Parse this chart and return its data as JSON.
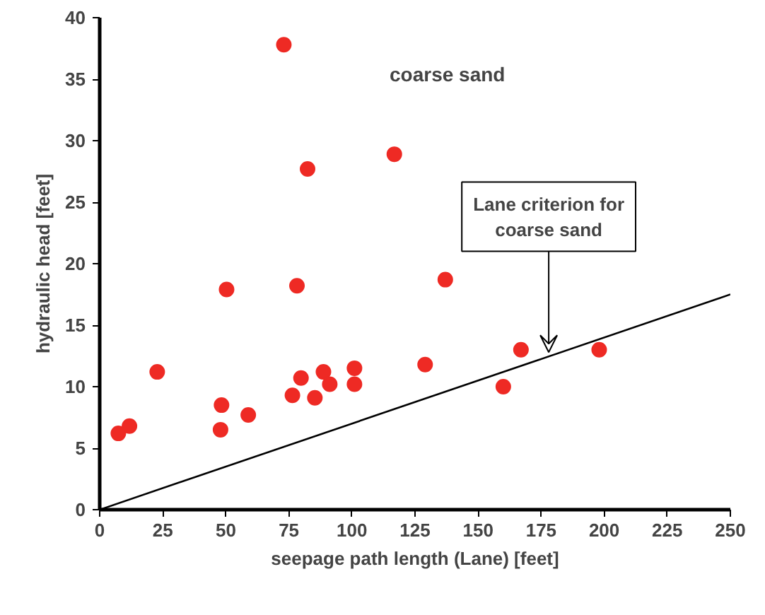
{
  "chart_data": {
    "type": "scatter",
    "xlabel": "seepage path length (Lane) [feet]",
    "ylabel": "hydraulic head [feet]",
    "xlim": [
      0,
      250
    ],
    "ylim": [
      0,
      40
    ],
    "xticks": [
      0,
      25,
      50,
      75,
      100,
      125,
      150,
      175,
      200,
      225,
      250
    ],
    "yticks": [
      0,
      5,
      10,
      15,
      20,
      25,
      30,
      35,
      40
    ],
    "grid": false,
    "marker": "circle",
    "series": [
      {
        "color": "#ee2a24",
        "x": [
          7.4,
          11.8,
          22.8,
          50.3,
          48.3,
          47.9,
          58.9,
          78.2,
          76.4,
          79.8,
          85.3,
          88.7,
          91.2,
          101,
          101,
          137,
          129,
          73,
          82.4,
          116.8,
          160,
          167,
          198
        ],
        "values": [
          6.2,
          6.8,
          11.2,
          17.9,
          8.5,
          6.5,
          7.7,
          18.2,
          9.3,
          10.7,
          9.1,
          11.2,
          10.2,
          11.5,
          10.2,
          18.7,
          11.8,
          37.8,
          27.7,
          28.9,
          10,
          13,
          13
        ]
      },
      {
        "type": "line",
        "marker": "none",
        "color": "#000000",
        "x": [
          0,
          250
        ],
        "values": [
          0,
          17.5
        ]
      }
    ],
    "annotations": [
      "coarse sand",
      {
        "text": "Lane criterion for\ncoarse sand",
        "x": 178,
        "y": 12.5
      }
    ]
  }
}
